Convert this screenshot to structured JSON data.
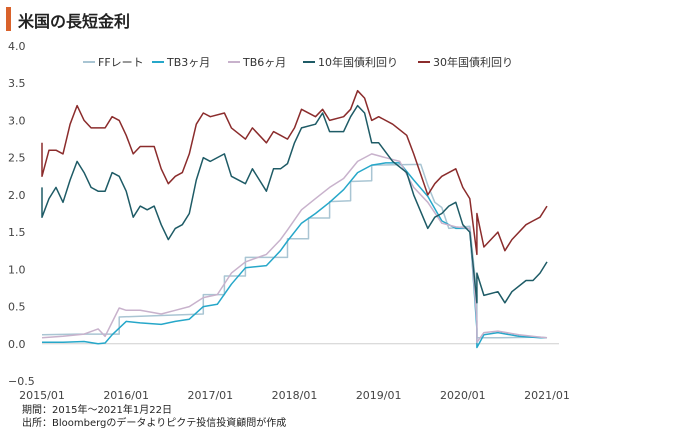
{
  "title": "米国の長短金利",
  "notes": {
    "period": "期間：2015年～2021年1月22日",
    "source": "出所：Bloombergのデータよりピクテ投信投資顧問が作成"
  },
  "colors": {
    "accent": "#d9622b"
  },
  "chart_data": {
    "type": "line",
    "title": "米国の長短金利",
    "xlabel": "",
    "ylabel": "",
    "ylim": [
      -0.5,
      4.0
    ],
    "yticks": [
      "4.0",
      "3.5",
      "3.0",
      "2.5",
      "2.0",
      "1.5",
      "1.0",
      "0.5",
      "0.0",
      "−0.5"
    ],
    "xticks": [
      "2015/01",
      "2016/01",
      "2017/01",
      "2018/01",
      "2019/01",
      "2020/01",
      "2021/01"
    ],
    "grid": false,
    "legend": "top",
    "series": [
      {
        "name": "FFレート",
        "color": "#a9c5d3",
        "values": [
          [
            "2015-01",
            0.12
          ],
          [
            "2015-06",
            0.13
          ],
          [
            "2015-12",
            0.13
          ],
          [
            "2015-12",
            0.36
          ],
          [
            "2016-06",
            0.38
          ],
          [
            "2016-12",
            0.4
          ],
          [
            "2016-12",
            0.66
          ],
          [
            "2017-03",
            0.66
          ],
          [
            "2017-03",
            0.91
          ],
          [
            "2017-06",
            0.91
          ],
          [
            "2017-06",
            1.16
          ],
          [
            "2017-12",
            1.16
          ],
          [
            "2017-12",
            1.41
          ],
          [
            "2018-03",
            1.41
          ],
          [
            "2018-03",
            1.69
          ],
          [
            "2018-06",
            1.69
          ],
          [
            "2018-06",
            1.91
          ],
          [
            "2018-09",
            1.92
          ],
          [
            "2018-09",
            2.18
          ],
          [
            "2018-12",
            2.19
          ],
          [
            "2018-12",
            2.4
          ],
          [
            "2019-07",
            2.41
          ],
          [
            "2019-08",
            2.13
          ],
          [
            "2019-09",
            1.9
          ],
          [
            "2019-10",
            1.83
          ],
          [
            "2019-11",
            1.55
          ],
          [
            "2020-02",
            1.58
          ],
          [
            "2020-03",
            0.65
          ],
          [
            "2020-03",
            0.08
          ],
          [
            "2020-06",
            0.08
          ],
          [
            "2020-12",
            0.09
          ],
          [
            "2021-01",
            0.08
          ]
        ]
      },
      {
        "name": "TB3ヶ月",
        "color": "#26a7c9",
        "values": [
          [
            "2015-01",
            0.02
          ],
          [
            "2015-04",
            0.02
          ],
          [
            "2015-07",
            0.03
          ],
          [
            "2015-09",
            0.0
          ],
          [
            "2015-10",
            0.01
          ],
          [
            "2015-11",
            0.12
          ],
          [
            "2015-12",
            0.21
          ],
          [
            "2016-01",
            0.3
          ],
          [
            "2016-03",
            0.28
          ],
          [
            "2016-06",
            0.26
          ],
          [
            "2016-08",
            0.3
          ],
          [
            "2016-10",
            0.33
          ],
          [
            "2016-12",
            0.5
          ],
          [
            "2017-02",
            0.53
          ],
          [
            "2017-04",
            0.8
          ],
          [
            "2017-06",
            1.02
          ],
          [
            "2017-09",
            1.05
          ],
          [
            "2017-11",
            1.25
          ],
          [
            "2017-12",
            1.38
          ],
          [
            "2018-02",
            1.62
          ],
          [
            "2018-04",
            1.75
          ],
          [
            "2018-06",
            1.9
          ],
          [
            "2018-08",
            2.07
          ],
          [
            "2018-10",
            2.3
          ],
          [
            "2018-12",
            2.4
          ],
          [
            "2019-02",
            2.43
          ],
          [
            "2019-04",
            2.43
          ],
          [
            "2019-06",
            2.2
          ],
          [
            "2019-08",
            1.98
          ],
          [
            "2019-10",
            1.65
          ],
          [
            "2019-12",
            1.55
          ],
          [
            "2020-02",
            1.55
          ],
          [
            "2020-03",
            0.2
          ],
          [
            "2020-03",
            -0.05
          ],
          [
            "2020-04",
            0.12
          ],
          [
            "2020-06",
            0.15
          ],
          [
            "2020-09",
            0.1
          ],
          [
            "2020-12",
            0.08
          ],
          [
            "2021-01",
            0.08
          ]
        ]
      },
      {
        "name": "TB6ヶ月",
        "color": "#c8b2cc",
        "values": [
          [
            "2015-01",
            0.08
          ],
          [
            "2015-04",
            0.1
          ],
          [
            "2015-07",
            0.13
          ],
          [
            "2015-09",
            0.2
          ],
          [
            "2015-10",
            0.1
          ],
          [
            "2015-12",
            0.48
          ],
          [
            "2016-01",
            0.45
          ],
          [
            "2016-03",
            0.45
          ],
          [
            "2016-06",
            0.4
          ],
          [
            "2016-08",
            0.45
          ],
          [
            "2016-10",
            0.5
          ],
          [
            "2016-12",
            0.62
          ],
          [
            "2017-02",
            0.66
          ],
          [
            "2017-04",
            0.95
          ],
          [
            "2017-06",
            1.1
          ],
          [
            "2017-09",
            1.2
          ],
          [
            "2017-11",
            1.4
          ],
          [
            "2017-12",
            1.53
          ],
          [
            "2018-02",
            1.8
          ],
          [
            "2018-04",
            1.95
          ],
          [
            "2018-06",
            2.1
          ],
          [
            "2018-08",
            2.22
          ],
          [
            "2018-10",
            2.45
          ],
          [
            "2018-12",
            2.55
          ],
          [
            "2019-02",
            2.5
          ],
          [
            "2019-04",
            2.45
          ],
          [
            "2019-06",
            2.1
          ],
          [
            "2019-08",
            1.9
          ],
          [
            "2019-10",
            1.62
          ],
          [
            "2019-12",
            1.57
          ],
          [
            "2020-02",
            1.55
          ],
          [
            "2020-03",
            0.3
          ],
          [
            "2020-03",
            0.02
          ],
          [
            "2020-04",
            0.15
          ],
          [
            "2020-06",
            0.17
          ],
          [
            "2020-09",
            0.12
          ],
          [
            "2020-12",
            0.09
          ],
          [
            "2021-01",
            0.08
          ]
        ]
      },
      {
        "name": "10年国債利回り",
        "color": "#1e5b66",
        "values": [
          [
            "2015-01",
            2.1
          ],
          [
            "2015-01",
            1.7
          ],
          [
            "2015-02",
            1.95
          ],
          [
            "2015-03",
            2.1
          ],
          [
            "2015-04",
            1.9
          ],
          [
            "2015-05",
            2.2
          ],
          [
            "2015-06",
            2.45
          ],
          [
            "2015-07",
            2.3
          ],
          [
            "2015-08",
            2.1
          ],
          [
            "2015-09",
            2.05
          ],
          [
            "2015-10",
            2.05
          ],
          [
            "2015-11",
            2.3
          ],
          [
            "2015-12",
            2.25
          ],
          [
            "2016-01",
            2.05
          ],
          [
            "2016-02",
            1.7
          ],
          [
            "2016-03",
            1.85
          ],
          [
            "2016-04",
            1.8
          ],
          [
            "2016-05",
            1.85
          ],
          [
            "2016-06",
            1.6
          ],
          [
            "2016-07",
            1.4
          ],
          [
            "2016-08",
            1.55
          ],
          [
            "2016-09",
            1.6
          ],
          [
            "2016-10",
            1.75
          ],
          [
            "2016-11",
            2.2
          ],
          [
            "2016-12",
            2.5
          ],
          [
            "2017-01",
            2.45
          ],
          [
            "2017-03",
            2.55
          ],
          [
            "2017-04",
            2.25
          ],
          [
            "2017-06",
            2.15
          ],
          [
            "2017-07",
            2.35
          ],
          [
            "2017-09",
            2.05
          ],
          [
            "2017-10",
            2.35
          ],
          [
            "2017-11",
            2.35
          ],
          [
            "2017-12",
            2.42
          ],
          [
            "2018-01",
            2.7
          ],
          [
            "2018-02",
            2.9
          ],
          [
            "2018-04",
            2.95
          ],
          [
            "2018-05",
            3.1
          ],
          [
            "2018-06",
            2.85
          ],
          [
            "2018-08",
            2.85
          ],
          [
            "2018-09",
            3.05
          ],
          [
            "2018-10",
            3.2
          ],
          [
            "2018-11",
            3.1
          ],
          [
            "2018-12",
            2.7
          ],
          [
            "2019-01",
            2.7
          ],
          [
            "2019-03",
            2.45
          ],
          [
            "2019-05",
            2.3
          ],
          [
            "2019-06",
            2.0
          ],
          [
            "2019-08",
            1.55
          ],
          [
            "2019-09",
            1.7
          ],
          [
            "2019-10",
            1.75
          ],
          [
            "2019-11",
            1.85
          ],
          [
            "2019-12",
            1.9
          ],
          [
            "2020-01",
            1.6
          ],
          [
            "2020-02",
            1.5
          ],
          [
            "2020-03",
            0.55
          ],
          [
            "2020-03",
            0.95
          ],
          [
            "2020-04",
            0.65
          ],
          [
            "2020-06",
            0.7
          ],
          [
            "2020-07",
            0.55
          ],
          [
            "2020-08",
            0.7
          ],
          [
            "2020-10",
            0.85
          ],
          [
            "2020-11",
            0.85
          ],
          [
            "2020-12",
            0.95
          ],
          [
            "2021-01",
            1.1
          ]
        ]
      },
      {
        "name": "30年国債利回り",
        "color": "#8b2c2c",
        "values": [
          [
            "2015-01",
            2.7
          ],
          [
            "2015-01",
            2.25
          ],
          [
            "2015-02",
            2.6
          ],
          [
            "2015-03",
            2.6
          ],
          [
            "2015-04",
            2.55
          ],
          [
            "2015-05",
            2.95
          ],
          [
            "2015-06",
            3.2
          ],
          [
            "2015-07",
            3.0
          ],
          [
            "2015-08",
            2.9
          ],
          [
            "2015-09",
            2.9
          ],
          [
            "2015-10",
            2.9
          ],
          [
            "2015-11",
            3.05
          ],
          [
            "2015-12",
            3.0
          ],
          [
            "2016-01",
            2.8
          ],
          [
            "2016-02",
            2.55
          ],
          [
            "2016-03",
            2.65
          ],
          [
            "2016-04",
            2.65
          ],
          [
            "2016-05",
            2.65
          ],
          [
            "2016-06",
            2.35
          ],
          [
            "2016-07",
            2.15
          ],
          [
            "2016-08",
            2.25
          ],
          [
            "2016-09",
            2.3
          ],
          [
            "2016-10",
            2.55
          ],
          [
            "2016-11",
            2.95
          ],
          [
            "2016-12",
            3.1
          ],
          [
            "2017-01",
            3.05
          ],
          [
            "2017-03",
            3.1
          ],
          [
            "2017-04",
            2.9
          ],
          [
            "2017-06",
            2.75
          ],
          [
            "2017-07",
            2.9
          ],
          [
            "2017-09",
            2.7
          ],
          [
            "2017-10",
            2.85
          ],
          [
            "2017-11",
            2.8
          ],
          [
            "2017-12",
            2.75
          ],
          [
            "2018-01",
            2.9
          ],
          [
            "2018-02",
            3.15
          ],
          [
            "2018-04",
            3.05
          ],
          [
            "2018-05",
            3.15
          ],
          [
            "2018-06",
            3.0
          ],
          [
            "2018-08",
            3.05
          ],
          [
            "2018-09",
            3.15
          ],
          [
            "2018-10",
            3.4
          ],
          [
            "2018-11",
            3.3
          ],
          [
            "2018-12",
            3.0
          ],
          [
            "2019-01",
            3.05
          ],
          [
            "2019-03",
            2.95
          ],
          [
            "2019-05",
            2.8
          ],
          [
            "2019-06",
            2.55
          ],
          [
            "2019-08",
            2.0
          ],
          [
            "2019-09",
            2.15
          ],
          [
            "2019-10",
            2.25
          ],
          [
            "2019-11",
            2.3
          ],
          [
            "2019-12",
            2.35
          ],
          [
            "2020-01",
            2.1
          ],
          [
            "2020-02",
            1.95
          ],
          [
            "2020-03",
            1.2
          ],
          [
            "2020-03",
            1.75
          ],
          [
            "2020-04",
            1.3
          ],
          [
            "2020-06",
            1.5
          ],
          [
            "2020-07",
            1.25
          ],
          [
            "2020-08",
            1.4
          ],
          [
            "2020-10",
            1.6
          ],
          [
            "2020-11",
            1.65
          ],
          [
            "2020-12",
            1.7
          ],
          [
            "2021-01",
            1.85
          ]
        ]
      }
    ]
  }
}
